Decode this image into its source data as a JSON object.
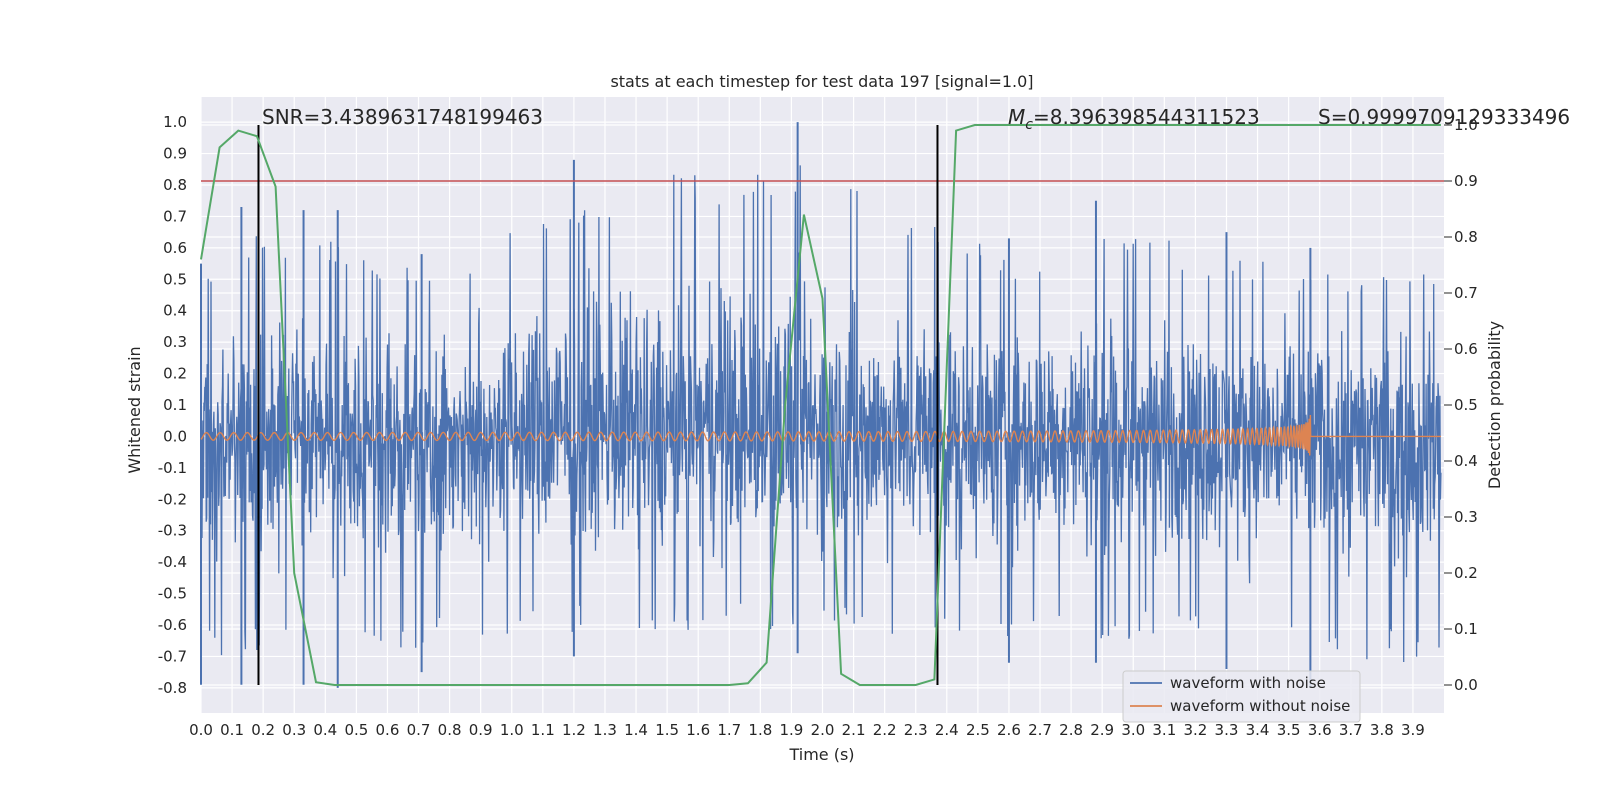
{
  "chart_data": {
    "type": "line",
    "title": "stats at each timestep for test data 197 [signal=1.0]",
    "xlabel": "Time (s)",
    "ylabel_left": "Whitened strain",
    "ylabel_right": "Detection probability",
    "xlim": [
      0.0,
      4.0
    ],
    "ylim_left": [
      -0.88,
      1.08
    ],
    "ylim_right": [
      -0.05,
      1.05
    ],
    "xticks": [
      "0.0",
      "0.1",
      "0.2",
      "0.3",
      "0.4",
      "0.5",
      "0.6",
      "0.7",
      "0.8",
      "0.9",
      "1.0",
      "1.1",
      "1.2",
      "1.3",
      "1.4",
      "1.5",
      "1.6",
      "1.7",
      "1.8",
      "1.9",
      "2.0",
      "2.1",
      "2.2",
      "2.3",
      "2.4",
      "2.5",
      "2.6",
      "2.7",
      "2.8",
      "2.9",
      "3.0",
      "3.1",
      "3.2",
      "3.3",
      "3.4",
      "3.5",
      "3.6",
      "3.7",
      "3.8",
      "3.9"
    ],
    "yticks_left": [
      "1.0",
      "0.9",
      "0.8",
      "0.7",
      "0.6",
      "0.5",
      "0.4",
      "0.3",
      "0.2",
      "0.1",
      "0.0",
      "-0.1",
      "-0.2",
      "-0.3",
      "-0.4",
      "-0.5",
      "-0.6",
      "-0.7",
      "-0.8"
    ],
    "yticks_right": [
      "1.0",
      "0.9",
      "0.8",
      "0.7",
      "0.6",
      "0.5",
      "0.4",
      "0.3",
      "0.2",
      "0.1",
      "0.0"
    ],
    "grid": true,
    "legend_position": "lower-right",
    "annotations": {
      "snr": "SNR=3.4389631748199463",
      "mc_symbol": "M",
      "mc_sub": "c",
      "mc_value": "=8.396398544311523",
      "s": "S=0.9999709129333496"
    },
    "series": [
      {
        "name": "waveform with noise",
        "color": "#4c72b0",
        "axis": "left",
        "description_points": {
          "x": [
            0.0,
            0.13,
            0.33,
            0.44,
            0.71,
            1.2,
            1.92,
            2.6,
            2.88,
            3.3,
            3.57
          ],
          "y_peak": [
            0.55,
            0.73,
            0.72,
            0.72,
            0.58,
            0.88,
            1.0,
            0.63,
            0.75,
            0.65,
            0.6
          ],
          "y_trough": [
            -0.79,
            -0.79,
            -0.79,
            -0.8,
            -0.75,
            -0.7,
            -0.69,
            -0.72,
            -0.72,
            -0.74,
            -0.8
          ]
        }
      },
      {
        "name": "waveform without noise",
        "color": "#dd8452",
        "axis": "left",
        "chirp_end_time": 3.57,
        "peak_amplitude": 0.12
      },
      {
        "name": "",
        "color": "#55a868",
        "axis": "right",
        "x": [
          0.0,
          0.06,
          0.12,
          0.18,
          0.24,
          0.3,
          0.37,
          0.43,
          0.5,
          1.7,
          1.76,
          1.82,
          1.88,
          1.94,
          2.0,
          2.06,
          2.12,
          2.18,
          2.3,
          2.36,
          2.43,
          2.49,
          3.99
        ],
        "y": [
          0.76,
          0.96,
          0.99,
          0.98,
          0.89,
          0.2,
          0.005,
          0.0,
          0.0,
          0.0,
          0.003,
          0.04,
          0.5,
          0.84,
          0.69,
          0.02,
          0.0,
          0.0,
          0.0,
          0.01,
          0.99,
          1.0,
          1.0
        ]
      }
    ],
    "threshold_line": {
      "color": "#c44e52",
      "y_right": 0.9
    },
    "vertical_markers": {
      "color": "#000000",
      "x": [
        0.185,
        2.37
      ]
    }
  }
}
